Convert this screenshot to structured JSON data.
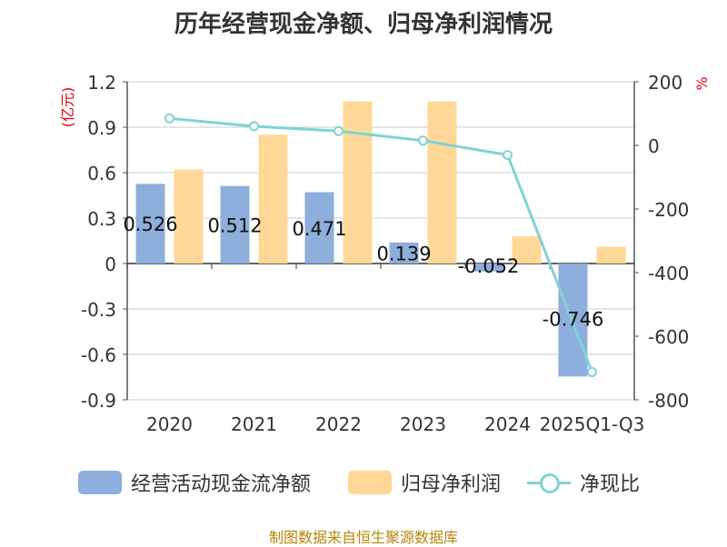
{
  "chart_data": {
    "type": "bar",
    "title": "历年经营现金净额、归母净利润情况",
    "categories": [
      "2020",
      "2021",
      "2022",
      "2023",
      "2024",
      "2025Q1-Q3"
    ],
    "series": [
      {
        "name": "经营活动现金流净额",
        "type": "bar",
        "axis": "left",
        "color": "#8eaedc",
        "values": [
          0.526,
          0.512,
          0.471,
          0.139,
          -0.052,
          -0.746
        ],
        "labels": [
          "0.526",
          "0.512",
          "0.471",
          "0.139",
          "-0.052",
          "-0.746"
        ]
      },
      {
        "name": "归母净利润",
        "type": "bar",
        "axis": "left",
        "color": "#ffd897",
        "values": [
          0.62,
          0.85,
          1.07,
          1.07,
          0.18,
          0.11
        ]
      },
      {
        "name": "净现比",
        "type": "line",
        "axis": "right",
        "color": "#7fd3d6",
        "values": [
          85,
          60,
          45,
          15,
          -30,
          -713
        ]
      }
    ],
    "ylabel_left": "(亿元)",
    "ylabel_right": "%",
    "ylim_left": [
      -0.9,
      1.2
    ],
    "yticks_left": [
      "1.2",
      "0.9",
      "0.6",
      "0.3",
      "0",
      "-0.3",
      "-0.6",
      "-0.9"
    ],
    "ylim_right": [
      -800,
      200
    ],
    "yticks_right": [
      "200",
      "0",
      "-200",
      "-400",
      "-600",
      "-800"
    ],
    "grid": true,
    "legend_position": "bottom"
  },
  "source_note": "制图数据来自恒生聚源数据库"
}
